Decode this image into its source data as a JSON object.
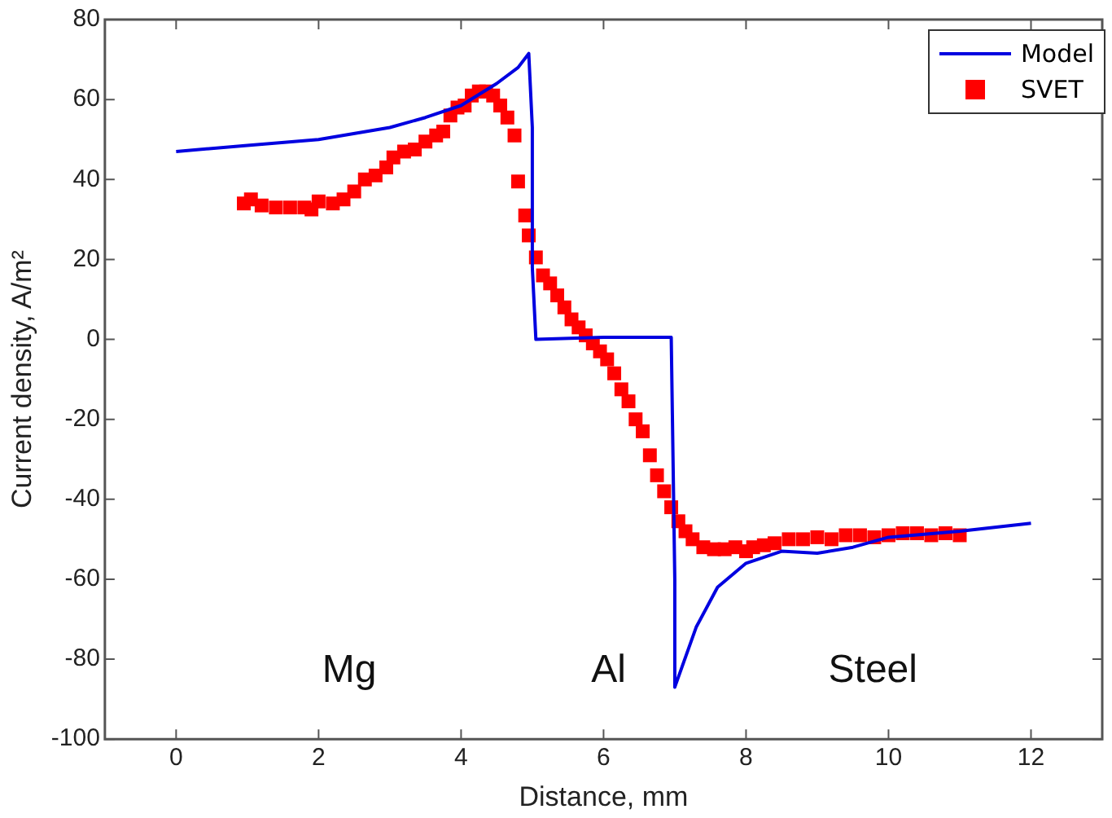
{
  "chart_data": {
    "type": "line",
    "xlabel": "Distance, mm",
    "ylabel": "Current density, A/m²",
    "xlim": [
      -1,
      13
    ],
    "ylim": [
      -100,
      80
    ],
    "xticks": [
      0,
      2,
      4,
      6,
      8,
      10,
      12
    ],
    "yticks": [
      -100,
      -80,
      -60,
      -40,
      -20,
      0,
      20,
      40,
      60,
      80
    ],
    "grid": false,
    "legend": "top right",
    "series": [
      {
        "name": "Model",
        "marker": "none",
        "color": "#0000e0",
        "x": [
          0,
          1,
          2,
          3,
          3.5,
          4,
          4.5,
          4.8,
          4.95,
          5.0,
          5.0,
          5.05,
          6,
          6.95,
          7.0,
          7.0,
          7.1,
          7.3,
          7.6,
          8,
          8.5,
          9,
          9.5,
          10,
          11,
          12
        ],
        "values": [
          47,
          48.5,
          50,
          53,
          55.5,
          58.5,
          64,
          68,
          71.5,
          53,
          18,
          0,
          0.5,
          0.5,
          -60,
          -87,
          -82,
          -72,
          -62,
          -56,
          -53,
          -53.5,
          -52,
          -49.5,
          -48,
          -46
        ]
      },
      {
        "name": "SVET",
        "type": "scatter",
        "marker": "square",
        "color": "#ff0000",
        "x": [
          0.95,
          1.05,
          1.2,
          1.4,
          1.6,
          1.8,
          1.9,
          2.0,
          2.2,
          2.35,
          2.5,
          2.65,
          2.8,
          2.95,
          3.05,
          3.2,
          3.35,
          3.5,
          3.65,
          3.75,
          3.85,
          3.95,
          4.05,
          4.15,
          4.25,
          4.35,
          4.45,
          4.55,
          4.65,
          4.75,
          4.8,
          4.9,
          4.95,
          5.05,
          5.15,
          5.25,
          5.35,
          5.45,
          5.55,
          5.65,
          5.75,
          5.85,
          5.95,
          6.05,
          6.15,
          6.25,
          6.35,
          6.45,
          6.55,
          6.65,
          6.75,
          6.85,
          6.95,
          7.05,
          7.15,
          7.25,
          7.4,
          7.55,
          7.7,
          7.85,
          8.0,
          8.1,
          8.25,
          8.4,
          8.6,
          8.8,
          9.0,
          9.2,
          9.4,
          9.6,
          9.8,
          10.0,
          10.2,
          10.4,
          10.6,
          10.8,
          11.0
        ],
        "values": [
          34,
          35,
          33.5,
          33,
          33,
          33,
          32.5,
          34.5,
          34,
          35,
          37,
          40,
          41,
          43,
          45.5,
          47,
          47.5,
          49.5,
          51,
          52,
          56,
          58,
          58.5,
          61,
          62,
          62,
          61,
          58.5,
          55.5,
          51,
          39.5,
          31,
          26,
          20.5,
          16,
          14,
          11,
          8,
          5,
          3,
          1,
          -1,
          -3,
          -5,
          -8.5,
          -12.5,
          -15.5,
          -20,
          -23,
          -29,
          -34,
          -38,
          -42,
          -45.5,
          -48,
          -50,
          -52,
          -52.5,
          -52.5,
          -52,
          -53,
          -52,
          -51.5,
          -51,
          -50,
          -50,
          -49.5,
          -50,
          -49,
          -49,
          -49.5,
          -49,
          -48.5,
          -48.5,
          -49,
          -48.5,
          -49
        ]
      }
    ],
    "annotations": [
      "Mg",
      "Al",
      "Steel"
    ]
  }
}
